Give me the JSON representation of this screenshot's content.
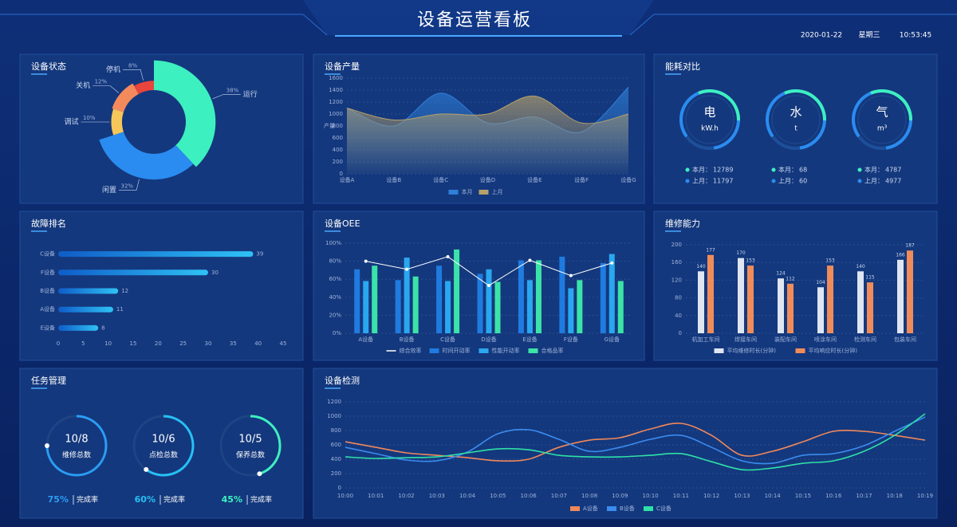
{
  "header": {
    "title": "设备运营看板",
    "date": "2020-01-22",
    "weekday": "星期三",
    "time": "10:53:45"
  },
  "chart_data": [
    {
      "type": "pie",
      "title": "设备状态",
      "categories": [
        "运行",
        "闲置",
        "调试",
        "关机",
        "停机"
      ],
      "values": [
        38,
        32,
        10,
        12,
        8
      ],
      "value_labels": [
        "38%",
        "32%",
        "10%",
        "12%",
        "8%"
      ],
      "colors": [
        "#3df0c0",
        "#2a8cf0",
        "#f6c65a",
        "#f48a5c",
        "#e8453c"
      ]
    },
    {
      "type": "area",
      "title": "设备产量",
      "y_label": "产量",
      "categories": [
        "设备A",
        "设备B",
        "设备C",
        "设备D",
        "设备E",
        "设备F",
        "设备G"
      ],
      "series": [
        {
          "name": "本月",
          "color": "#2f7fd8",
          "values": [
            1100,
            800,
            1350,
            850,
            950,
            700,
            1450
          ]
        },
        {
          "name": "上月",
          "color": "#b7a16a",
          "values": [
            1100,
            900,
            1000,
            1000,
            1300,
            850,
            1000
          ]
        }
      ],
      "ylim": [
        0,
        1600
      ],
      "yticks": [
        0,
        200,
        400,
        600,
        800,
        1000,
        1200,
        1400,
        1600
      ]
    },
    {
      "type": "gauge",
      "title": "能耗对比",
      "items": [
        {
          "name": "电",
          "unit": "kW.h",
          "current_label": "本月：",
          "current": 12789,
          "previous_label": "上月：",
          "previous": 11797
        },
        {
          "name": "水",
          "unit": "t",
          "current_label": "本月：",
          "current": 68,
          "previous_label": "上月：",
          "previous": 60
        },
        {
          "name": "气",
          "unit": "m³",
          "current_label": "本月：",
          "current": 4787,
          "previous_label": "上月：",
          "previous": 4977
        }
      ]
    },
    {
      "type": "hbar",
      "title": "故障排名",
      "categories": [
        "C设备",
        "F设备",
        "B设备",
        "A设备",
        "E设备"
      ],
      "values": [
        39,
        30,
        12,
        11,
        8
      ],
      "color": "#2aa7f0",
      "xlim": [
        0,
        45
      ],
      "xticks": [
        0,
        5,
        10,
        15,
        20,
        25,
        30,
        35,
        40,
        45
      ]
    },
    {
      "type": "combo",
      "title": "设备OEE",
      "categories": [
        "A设备",
        "B设备",
        "C设备",
        "D设备",
        "E设备",
        "F设备",
        "G设备"
      ],
      "series": [
        {
          "name": "综合效率",
          "kind": "line",
          "color": "#ffffff",
          "values": [
            80,
            71,
            85,
            53,
            81,
            64,
            78
          ]
        },
        {
          "name": "时间开动率",
          "kind": "bar",
          "color": "#1f7be0",
          "values": [
            71,
            59,
            75,
            66,
            81,
            85,
            78
          ]
        },
        {
          "name": "性能开动率",
          "kind": "bar",
          "color": "#2aa7f0",
          "values": [
            58,
            84,
            58,
            71,
            59,
            50,
            88
          ]
        },
        {
          "name": "合格品率",
          "kind": "bar",
          "color": "#3be3a8",
          "values": [
            75,
            63,
            93,
            57,
            81,
            59,
            58
          ]
        }
      ],
      "ylim": [
        0,
        100
      ],
      "yticks": [
        {
          "value": 0,
          "label": "0%"
        },
        {
          "value": 20,
          "label": "20%"
        },
        {
          "value": 40,
          "label": "40%"
        },
        {
          "value": 60,
          "label": "60%"
        },
        {
          "value": 80,
          "label": "80%"
        },
        {
          "value": 100,
          "label": "100%"
        }
      ]
    },
    {
      "type": "bar",
      "title": "维修能力",
      "categories": [
        "机加工车间",
        "焊接车间",
        "装配车间",
        "喷涂车间",
        "检测车间",
        "包装车间"
      ],
      "series": [
        {
          "name": "平均维修时长(分钟)",
          "color": "#dfe6f2",
          "values": [
            140,
            170,
            124,
            104,
            140,
            166
          ]
        },
        {
          "name": "平均响应时长(分钟)",
          "color": "#f08c5a",
          "values": [
            177,
            153,
            112,
            153,
            115,
            187
          ]
        }
      ],
      "ylim": [
        0,
        200
      ],
      "yticks": [
        0,
        40,
        80,
        120,
        160,
        200
      ]
    },
    {
      "type": "ring",
      "title": "任务管理",
      "items": [
        {
          "ratio": "10/8",
          "name": "维修总数",
          "value": 75,
          "value_label": "75%",
          "suffix": "完成率",
          "color": "#2a9df4"
        },
        {
          "ratio": "10/6",
          "name": "点检总数",
          "value": 60,
          "value_label": "60%",
          "suffix": "完成率",
          "color": "#27c0f5"
        },
        {
          "ratio": "10/5",
          "name": "保养总数",
          "value": 45,
          "value_label": "45%",
          "suffix": "完成率",
          "color": "#3df0c0"
        }
      ]
    },
    {
      "type": "line",
      "title": "设备检测",
      "categories": [
        "10:00",
        "10:01",
        "10:02",
        "10:03",
        "10:04",
        "10:05",
        "10:06",
        "10:07",
        "10:08",
        "10:09",
        "10:10",
        "10:11",
        "10:12",
        "10:13",
        "10:14",
        "10:15",
        "10:16",
        "10:17",
        "10:18",
        "10:19"
      ],
      "series": [
        {
          "name": "A设备",
          "color": "#f0885a",
          "values": [
            644,
            566,
            489,
            455,
            422,
            378,
            400,
            566,
            666,
            700,
            822,
            900,
            733,
            455,
            511,
            644,
            789,
            789,
            733,
            666
          ]
        },
        {
          "name": "B设备",
          "color": "#3a8cf0",
          "values": [
            566,
            478,
            389,
            378,
            500,
            755,
            811,
            678,
            511,
            566,
            678,
            733,
            566,
            378,
            344,
            455,
            478,
            589,
            789,
            988
          ]
        },
        {
          "name": "C设备",
          "color": "#2fe0a8",
          "values": [
            433,
            411,
            422,
            433,
            489,
            544,
            533,
            455,
            433,
            433,
            455,
            478,
            366,
            255,
            277,
            344,
            378,
            511,
            733,
            1033
          ]
        }
      ],
      "ylim": [
        0,
        1200
      ],
      "yticks": [
        0,
        200,
        400,
        600,
        800,
        1000,
        1200
      ]
    }
  ]
}
